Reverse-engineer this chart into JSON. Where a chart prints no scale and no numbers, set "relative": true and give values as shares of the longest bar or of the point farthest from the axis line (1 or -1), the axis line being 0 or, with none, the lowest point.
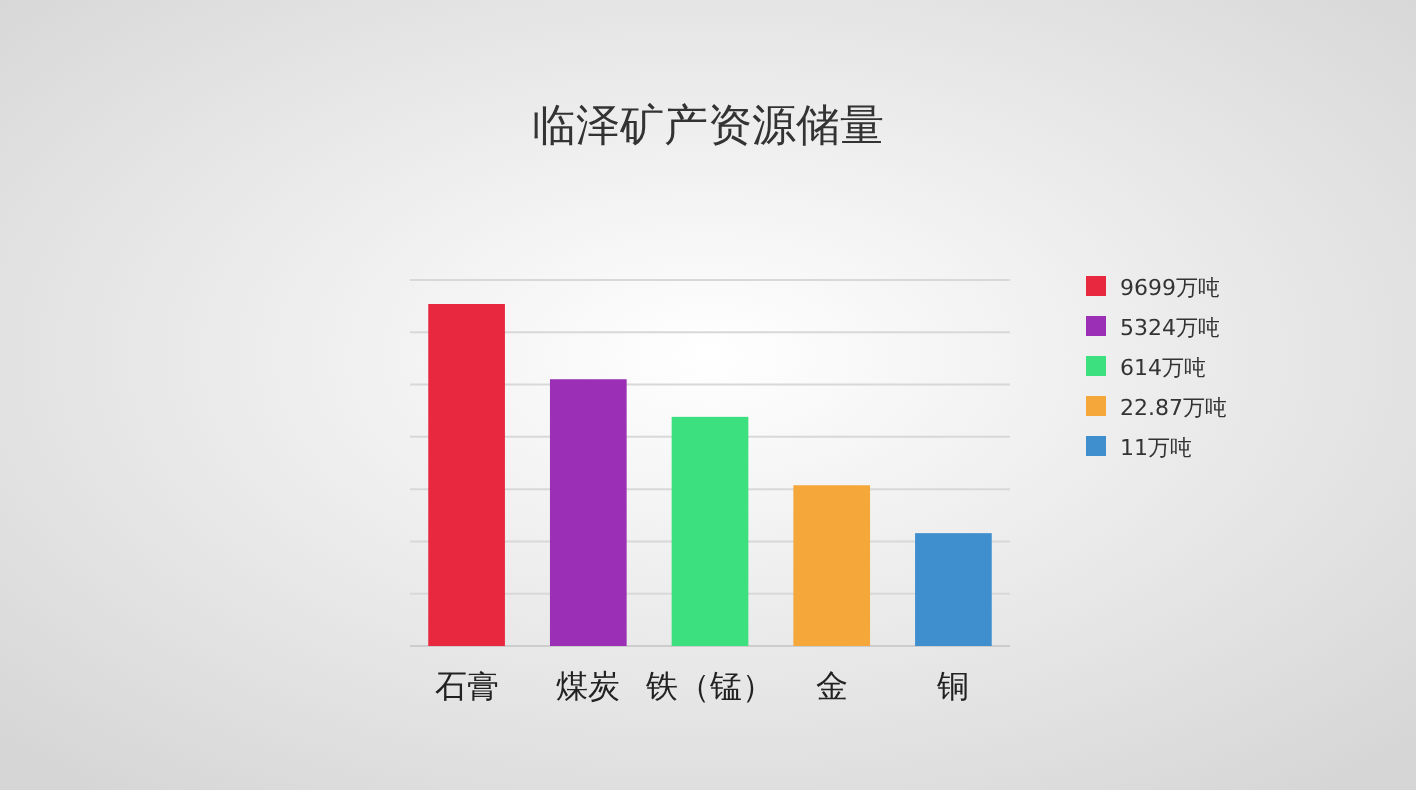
{
  "chart_data": {
    "type": "bar",
    "title": "临泽矿产资源储量",
    "categories": [
      "石膏",
      "煤炭",
      "铁（锰）",
      "金",
      "铜"
    ],
    "relative": true,
    "grid": true,
    "legend": "right",
    "series": [
      {
        "name": "9699万吨",
        "color": "#e8283f",
        "values": [
          1,
          null,
          null,
          null,
          null
        ]
      },
      {
        "name": "5324万吨",
        "color": "#9b2fb5",
        "values": [
          null,
          0.78,
          null,
          null,
          null
        ]
      },
      {
        "name": "614万吨",
        "color": "#3de07e",
        "values": [
          null,
          null,
          0.67,
          null,
          null
        ]
      },
      {
        "name": "22.87万吨",
        "color": "#f5a73a",
        "values": [
          null,
          null,
          null,
          0.47,
          null
        ]
      },
      {
        "name": "11万吨",
        "color": "#3f8fcf",
        "values": [
          null,
          null,
          null,
          null,
          0.33
        ]
      }
    ]
  }
}
